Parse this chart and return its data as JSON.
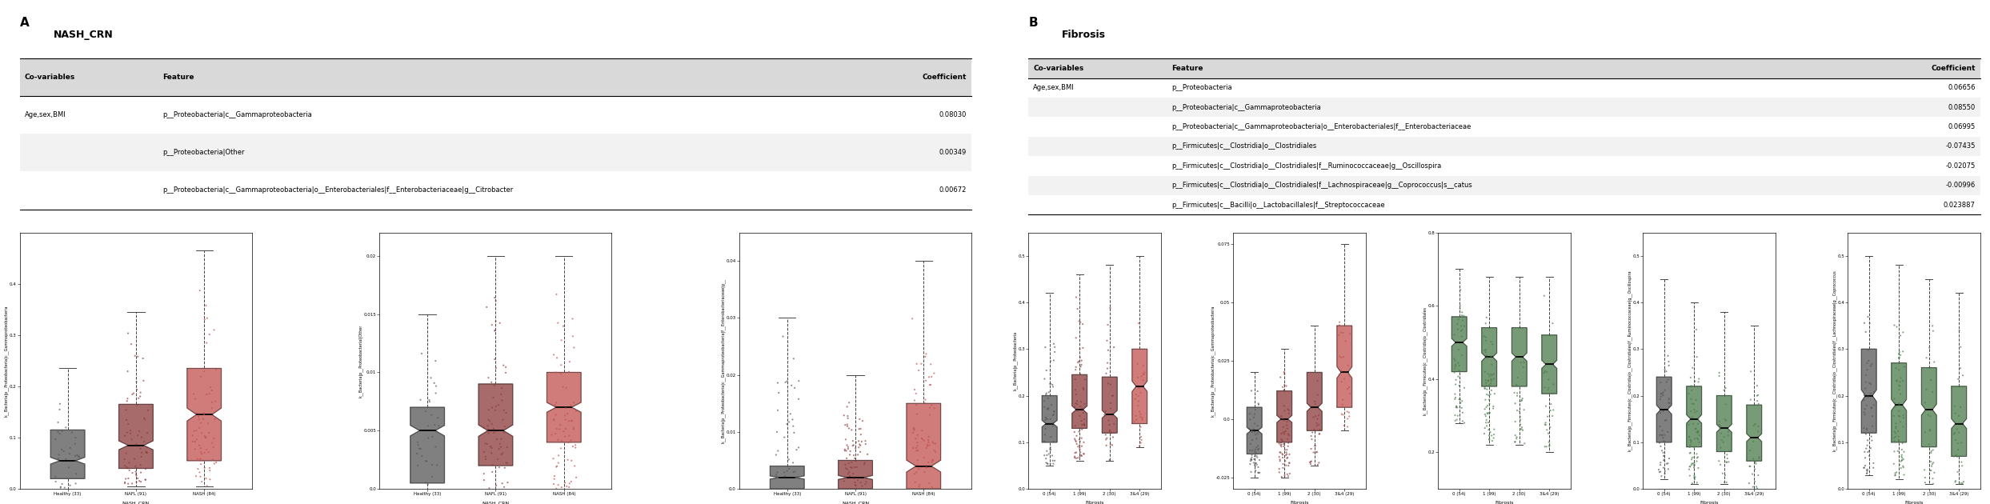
{
  "panel_A": {
    "title": "NASH_CRN",
    "table": {
      "header": [
        "Co-variables",
        "Feature",
        "Coefficient"
      ],
      "rows": [
        [
          "Age,sex,BMI",
          "p__Proteobacteria|c__Gammaproteobacteria",
          "0.08030"
        ],
        [
          "",
          "p__Proteobacteria|Other",
          "0.00349"
        ],
        [
          "",
          "p__Proteobacteria|c__Gammaproteobacteria|o__Enterobacteriales|f__Enterobacteriaceae|g__Citrobacter",
          "0.00672"
        ]
      ]
    },
    "boxplots": [
      {
        "ylabel": "k__Bacteria|p__Proteobacteria|c__Gammaproteobacteria",
        "xlabel": "NASH_CRN",
        "groups": [
          "Healthy (33)",
          "NAFL (91)",
          "NASH (84)"
        ],
        "colors": [
          "#555555",
          "#8B3A3A",
          "#C0504D"
        ],
        "medians": [
          0.055,
          0.085,
          0.145
        ],
        "q1": [
          0.02,
          0.04,
          0.055
        ],
        "q3": [
          0.115,
          0.165,
          0.235
        ],
        "whisker_low": [
          0.0,
          0.005,
          0.005
        ],
        "whisker_high": [
          0.235,
          0.345,
          0.465
        ],
        "ylim": [
          0.0,
          0.5
        ],
        "yticks": [
          0.0,
          0.1,
          0.2,
          0.3,
          0.4
        ]
      },
      {
        "ylabel": "k__Bacteria|p__Proteobacterial|Other",
        "xlabel": "NASH_CRN",
        "groups": [
          "Healthy (33)",
          "NAFL (91)",
          "NASH (84)"
        ],
        "colors": [
          "#555555",
          "#8B3A3A",
          "#C0504D"
        ],
        "medians": [
          0.005,
          0.005,
          0.007
        ],
        "q1": [
          0.0005,
          0.002,
          0.004
        ],
        "q3": [
          0.007,
          0.009,
          0.01
        ],
        "whisker_low": [
          0.0,
          0.0,
          0.0
        ],
        "whisker_high": [
          0.015,
          0.02,
          0.02
        ],
        "ylim": [
          0.0,
          0.022
        ],
        "yticks": [
          0.0,
          0.005,
          0.01,
          0.015,
          0.02
        ]
      },
      {
        "ylabel": "k__Bacteria|p__Proteobacteria|c__Gammaproteobacteria|f__Enterobacteriaceae|g__",
        "xlabel": "NASH_CRN",
        "groups": [
          "Healthy (33)",
          "NAFL (91)",
          "NASH (84)"
        ],
        "colors": [
          "#555555",
          "#8B3A3A",
          "#C0504D"
        ],
        "medians": [
          0.002,
          0.002,
          0.004
        ],
        "q1": [
          0.0,
          0.0,
          0.0
        ],
        "q3": [
          0.004,
          0.005,
          0.015
        ],
        "whisker_low": [
          0.0,
          0.0,
          0.0
        ],
        "whisker_high": [
          0.03,
          0.02,
          0.04
        ],
        "ylim": [
          0.0,
          0.045
        ],
        "yticks": [
          0.0,
          0.01,
          0.02,
          0.03,
          0.04
        ]
      }
    ]
  },
  "panel_B": {
    "title": "Fibrosis",
    "table": {
      "header": [
        "Co-variables",
        "Feature",
        "Coefficient"
      ],
      "rows": [
        [
          "Age,sex,BMI",
          "p__Proteobacteria",
          "0.06656"
        ],
        [
          "",
          "p__Proteobacteria|c__Gammaproteobacteria",
          "0.08550"
        ],
        [
          "",
          "p__Proteobacteria|c__Gammaproteobacteria|o__Enterobacteriales|f__Enterobacteriaceae",
          "0.06995"
        ],
        [
          "",
          "p__Firmicutes|c__Clostridia|o__Clostridiales",
          "-0.07435"
        ],
        [
          "",
          "p__Firmicutes|c__Clostridia|o__Clostridiales|f__Ruminococcaceae|g__Oscillospira",
          "-0.02075"
        ],
        [
          "",
          "p__Firmicutes|c__Clostridia|o__Clostridiales|f__Lachnospiraceae|g__Coprococcus|s__catus",
          "-0.00996"
        ],
        [
          "",
          "p__Firmicutes|c__Bacilli|o__Lactobacillales|f__Streptococcaceae",
          "0.023887"
        ]
      ]
    },
    "boxplots": [
      {
        "ylabel": "k__Bacteria|p__Proteobacteria",
        "xlabel": "Fibrosis",
        "groups": [
          "0 (54)",
          "1 (99)",
          "2 (30)",
          "3&4 (29)"
        ],
        "colors": [
          "#555555",
          "#8B3A3A",
          "#8B3A3A",
          "#C0504D"
        ],
        "medians": [
          0.14,
          0.17,
          0.16,
          0.22
        ],
        "q1": [
          0.1,
          0.13,
          0.12,
          0.14
        ],
        "q3": [
          0.2,
          0.245,
          0.24,
          0.3
        ],
        "whisker_low": [
          0.05,
          0.06,
          0.06,
          0.09
        ],
        "whisker_high": [
          0.42,
          0.46,
          0.48,
          0.5
        ],
        "ylim": [
          0.0,
          0.55
        ],
        "yticks": [
          0.0,
          0.1,
          0.2,
          0.3,
          0.4,
          0.5
        ]
      },
      {
        "ylabel": "k__Bacteria|p__Proteobacteria|c__Gammaproteobacteria",
        "xlabel": "Fibrosis",
        "groups": [
          "0 (54)",
          "1 (99)",
          "2 (30)",
          "3&4 (29)"
        ],
        "colors": [
          "#555555",
          "#8B3A3A",
          "#8B3A3A",
          "#C0504D"
        ],
        "medians": [
          -0.005,
          0.0,
          0.005,
          0.02
        ],
        "q1": [
          -0.015,
          -0.01,
          -0.005,
          0.005
        ],
        "q3": [
          0.005,
          0.012,
          0.02,
          0.04
        ],
        "whisker_low": [
          -0.025,
          -0.025,
          -0.02,
          -0.005
        ],
        "whisker_high": [
          0.02,
          0.03,
          0.04,
          0.075
        ],
        "ylim": [
          -0.03,
          0.08
        ],
        "yticks": [
          -0.025,
          0.0,
          0.025,
          0.05,
          0.075
        ]
      },
      {
        "ylabel": "k__Bacteria|p__Firmicutes|c__Clostridia|o__Clostridiales",
        "xlabel": "Fibrosis",
        "groups": [
          "0 (54)",
          "1 (99)",
          "2 (30)",
          "3&4 (29)"
        ],
        "colors": [
          "#4A7A4A",
          "#4A7A4A",
          "#4A7A4A",
          "#4A7A4A"
        ],
        "medians": [
          0.5,
          0.46,
          0.46,
          0.44
        ],
        "q1": [
          0.42,
          0.38,
          0.38,
          0.36
        ],
        "q3": [
          0.57,
          0.54,
          0.54,
          0.52
        ],
        "whisker_low": [
          0.28,
          0.22,
          0.22,
          0.2
        ],
        "whisker_high": [
          0.7,
          0.68,
          0.68,
          0.68
        ],
        "ylim": [
          0.1,
          0.8
        ],
        "yticks": [
          0.2,
          0.4,
          0.6,
          0.8
        ]
      },
      {
        "ylabel": "k__Bacteria|p__Firmicutes|c__Clostridia|o__Clostridiales|f__Ruminococcaceae|g__Oscillospira",
        "xlabel": "Fibrosis",
        "groups": [
          "0 (54)",
          "1 (99)",
          "2 (30)",
          "3&4 (29)"
        ],
        "colors": [
          "#555555",
          "#4A7A4A",
          "#4A7A4A",
          "#4A7A4A"
        ],
        "medians": [
          0.17,
          0.15,
          0.13,
          0.11
        ],
        "q1": [
          0.1,
          0.09,
          0.08,
          0.06
        ],
        "q3": [
          0.24,
          0.22,
          0.2,
          0.18
        ],
        "whisker_low": [
          0.02,
          0.01,
          0.01,
          0.0
        ],
        "whisker_high": [
          0.45,
          0.4,
          0.38,
          0.35
        ],
        "ylim": [
          0.0,
          0.55
        ],
        "yticks": [
          0.0,
          0.1,
          0.2,
          0.3,
          0.4,
          0.5
        ]
      },
      {
        "ylabel": "k__Bacteria|p__Firmicutes|c__Clostridia|o__Clostridiales|f__Lachnospiraceae|g__Coprococcus",
        "xlabel": "Fibrosis",
        "groups": [
          "0 (54)",
          "1 (99)",
          "2 (30)",
          "3&4 (29)"
        ],
        "colors": [
          "#555555",
          "#4A7A4A",
          "#4A7A4A",
          "#4A7A4A"
        ],
        "medians": [
          0.2,
          0.18,
          0.17,
          0.14
        ],
        "q1": [
          0.12,
          0.1,
          0.09,
          0.07
        ],
        "q3": [
          0.3,
          0.27,
          0.26,
          0.22
        ],
        "whisker_low": [
          0.03,
          0.02,
          0.01,
          0.01
        ],
        "whisker_high": [
          0.5,
          0.48,
          0.45,
          0.42
        ],
        "ylim": [
          0.0,
          0.55
        ],
        "yticks": [
          0.0,
          0.1,
          0.2,
          0.3,
          0.4,
          0.5
        ]
      }
    ]
  },
  "bg_color": "#ffffff",
  "table_header_color": "#d9d9d9",
  "table_row_colors": [
    "#ffffff",
    "#f2f2f2"
  ],
  "font_size_title": 9,
  "font_size_table": 6.5,
  "font_size_axis": 4.5,
  "font_size_tick": 4.5
}
